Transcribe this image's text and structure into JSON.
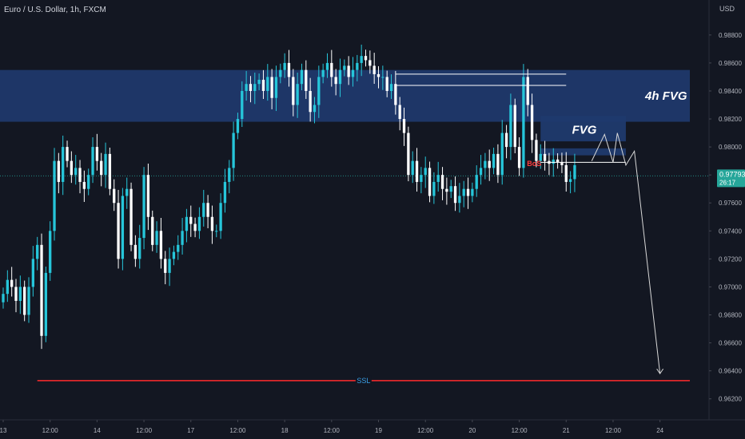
{
  "header": {
    "symbol_line": "Euro / U.S. Dollar, 1h, FXCM"
  },
  "colors": {
    "background": "#131722",
    "bull": "#26c6da",
    "bear": "#ffffff",
    "zone": "#1f3a6e",
    "ssl_line": "#ff2b2b",
    "ssl_text": "#3aa0e8",
    "bos_text": "#ff3b3b",
    "price_line": "#26a69a",
    "axis_text": "#b2b5be"
  },
  "chart_data": {
    "type": "candlestick",
    "y_axis": {
      "currency": "USD",
      "range": [
        0.9605,
        0.9905
      ],
      "ticks": [
        0.962,
        0.964,
        0.966,
        0.968,
        0.97,
        0.972,
        0.974,
        0.976,
        0.978,
        0.98,
        0.982,
        0.984,
        0.986,
        0.988
      ],
      "tick_labels": [
        "0.96200",
        "0.96400",
        "0.96600",
        "0.96800",
        "0.97000",
        "0.97200",
        "0.97400",
        "0.97600",
        "0.97800",
        "0.98000",
        "0.98200",
        "0.98400",
        "0.98600",
        "0.98800"
      ]
    },
    "x_axis": {
      "bar_range": [
        0,
        164
      ],
      "ticks": [
        {
          "bar": 0,
          "label": "13"
        },
        {
          "bar": 11,
          "label": "12:00"
        },
        {
          "bar": 22,
          "label": "14"
        },
        {
          "bar": 33,
          "label": "12:00"
        },
        {
          "bar": 44,
          "label": "17"
        },
        {
          "bar": 55,
          "label": "12:00"
        },
        {
          "bar": 66,
          "label": "18"
        },
        {
          "bar": 77,
          "label": "12:00"
        },
        {
          "bar": 88,
          "label": "19"
        },
        {
          "bar": 99,
          "label": "12:00"
        },
        {
          "bar": 110,
          "label": "20"
        },
        {
          "bar": 121,
          "label": "12:00"
        },
        {
          "bar": 132,
          "label": "21"
        },
        {
          "bar": 143,
          "label": "12:00"
        },
        {
          "bar": 154,
          "label": "24"
        },
        {
          "bar": 165,
          "label": "12:00"
        }
      ]
    },
    "current_price": {
      "value": 0.97793,
      "label": "0.97793",
      "countdown": "26:17"
    },
    "closes": [
      0.9695,
      0.9705,
      0.97,
      0.969,
      0.97,
      0.968,
      0.97,
      0.972,
      0.973,
      0.9665,
      0.971,
      0.974,
      0.979,
      0.9775,
      0.98,
      0.979,
      0.978,
      0.9785,
      0.9775,
      0.977,
      0.978,
      0.98,
      0.979,
      0.978,
      0.9795,
      0.977,
      0.976,
      0.972,
      0.9765,
      0.977,
      0.973,
      0.972,
      0.9735,
      0.978,
      0.975,
      0.973,
      0.974,
      0.972,
      0.971,
      0.972,
      0.9725,
      0.973,
      0.974,
      0.975,
      0.9745,
      0.974,
      0.975,
      0.976,
      0.975,
      0.974,
      0.974,
      0.976,
      0.9775,
      0.9785,
      0.981,
      0.982,
      0.984,
      0.9845,
      0.984,
      0.9845,
      0.9848,
      0.984,
      0.985,
      0.9835,
      0.985,
      0.9855,
      0.986,
      0.985,
      0.983,
      0.9845,
      0.9855,
      0.984,
      0.9825,
      0.983,
      0.985,
      0.9855,
      0.986,
      0.985,
      0.9845,
      0.9855,
      0.9858,
      0.985,
      0.9855,
      0.986,
      0.9865,
      0.9862,
      0.9858,
      0.9852,
      0.985,
      0.985,
      0.984,
      0.9845,
      0.983,
      0.982,
      0.981,
      0.978,
      0.979,
      0.9775,
      0.978,
      0.9785,
      0.9765,
      0.9775,
      0.978,
      0.977,
      0.9768,
      0.9772,
      0.976,
      0.9765,
      0.977,
      0.9765,
      0.977,
      0.978,
      0.9785,
      0.979,
      0.9785,
      0.9795,
      0.978,
      0.981,
      0.98,
      0.983,
      0.98,
      0.9785,
      0.985,
      0.983,
      0.9805,
      0.979,
      0.9795,
      0.979,
      0.9788,
      0.9791,
      0.9789,
      0.9787,
      0.9775,
      0.9777,
      0.9787
    ],
    "annotations": {
      "zone_4h_fvg": {
        "label": "4h FVG",
        "price_top": 0.9855,
        "price_bottom": 0.9818,
        "bar_start": 0,
        "bar_end": 161
      },
      "fvg": {
        "label": "FVG",
        "price_top": 0.9822,
        "price_bottom": 0.9804,
        "bar_start": 126,
        "bar_end": 146
      },
      "fvg_lower_box": {
        "price_top": 0.9799,
        "price_bottom": 0.9794,
        "bar_start": 126,
        "bar_end": 146
      },
      "ssl": {
        "label": "SSL",
        "price": 0.9633,
        "bar_start": 8,
        "bar_end": 161
      },
      "bos": {
        "label": "BoS",
        "price": 0.9788,
        "bar": 126
      },
      "liquidity_lines": [
        {
          "price": 0.9852,
          "bar_start": 92,
          "bar_end": 132
        },
        {
          "price": 0.9844,
          "bar_start": 92,
          "bar_end": 132
        },
        {
          "price": 0.9789,
          "bar_start": 126,
          "bar_end": 146
        }
      ],
      "projection_path": [
        {
          "bar": 138,
          "price": 0.979
        },
        {
          "bar": 141,
          "price": 0.9809
        },
        {
          "bar": 143,
          "price": 0.9789
        },
        {
          "bar": 144,
          "price": 0.981
        },
        {
          "bar": 146,
          "price": 0.9787
        },
        {
          "bar": 148,
          "price": 0.9797
        },
        {
          "bar": 154,
          "price": 0.9638
        }
      ]
    }
  }
}
